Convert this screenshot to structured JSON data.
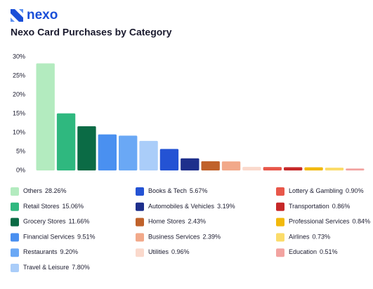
{
  "brand": "nexo",
  "chart_data": {
    "type": "bar",
    "title": "Nexo Card Purchases by Category",
    "categories": [
      "Others",
      "Retail Stores",
      "Grocery Stores",
      "Financial Services",
      "Restaurants",
      "Travel & Leisure",
      "Books & Tech",
      "Automobiles & Vehicles",
      "Home Stores",
      "Business Services",
      "Utilities",
      "Lottery & Gambling",
      "Transportation",
      "Professional Services",
      "Airlines",
      "Education"
    ],
    "values": [
      28.26,
      15.06,
      11.66,
      9.51,
      9.2,
      7.8,
      5.67,
      3.19,
      2.43,
      2.39,
      0.96,
      0.9,
      0.86,
      0.84,
      0.73,
      0.51
    ],
    "value_labels": [
      "28.26%",
      "15.06%",
      "11.66%",
      "9.51%",
      "9.20%",
      "7.80%",
      "5.67%",
      "3.19%",
      "2.43%",
      "2.39%",
      "0.96%",
      "0.90%",
      "0.86%",
      "0.84%",
      "0.73%",
      "0.51%"
    ],
    "colors": [
      "#b3ebbf",
      "#2fb87f",
      "#0b6b45",
      "#4a90f0",
      "#6aa8f5",
      "#aacdf9",
      "#2453d4",
      "#1e2f8c",
      "#c0622b",
      "#f2a98a",
      "#fad9cc",
      "#e8574a",
      "#c62828",
      "#f2b90c",
      "#fbdc6a",
      "#f2a3a0"
    ],
    "ylim": [
      0,
      30
    ],
    "yticks": [
      {
        "value": 0,
        "label": "0%"
      },
      {
        "value": 5,
        "label": "5%"
      },
      {
        "value": 10,
        "label": "10%"
      },
      {
        "value": 15,
        "label": "15%"
      },
      {
        "value": 20,
        "label": "20%"
      },
      {
        "value": 25,
        "label": "25%"
      },
      {
        "value": 30,
        "label": "30%"
      }
    ],
    "grid": false
  }
}
